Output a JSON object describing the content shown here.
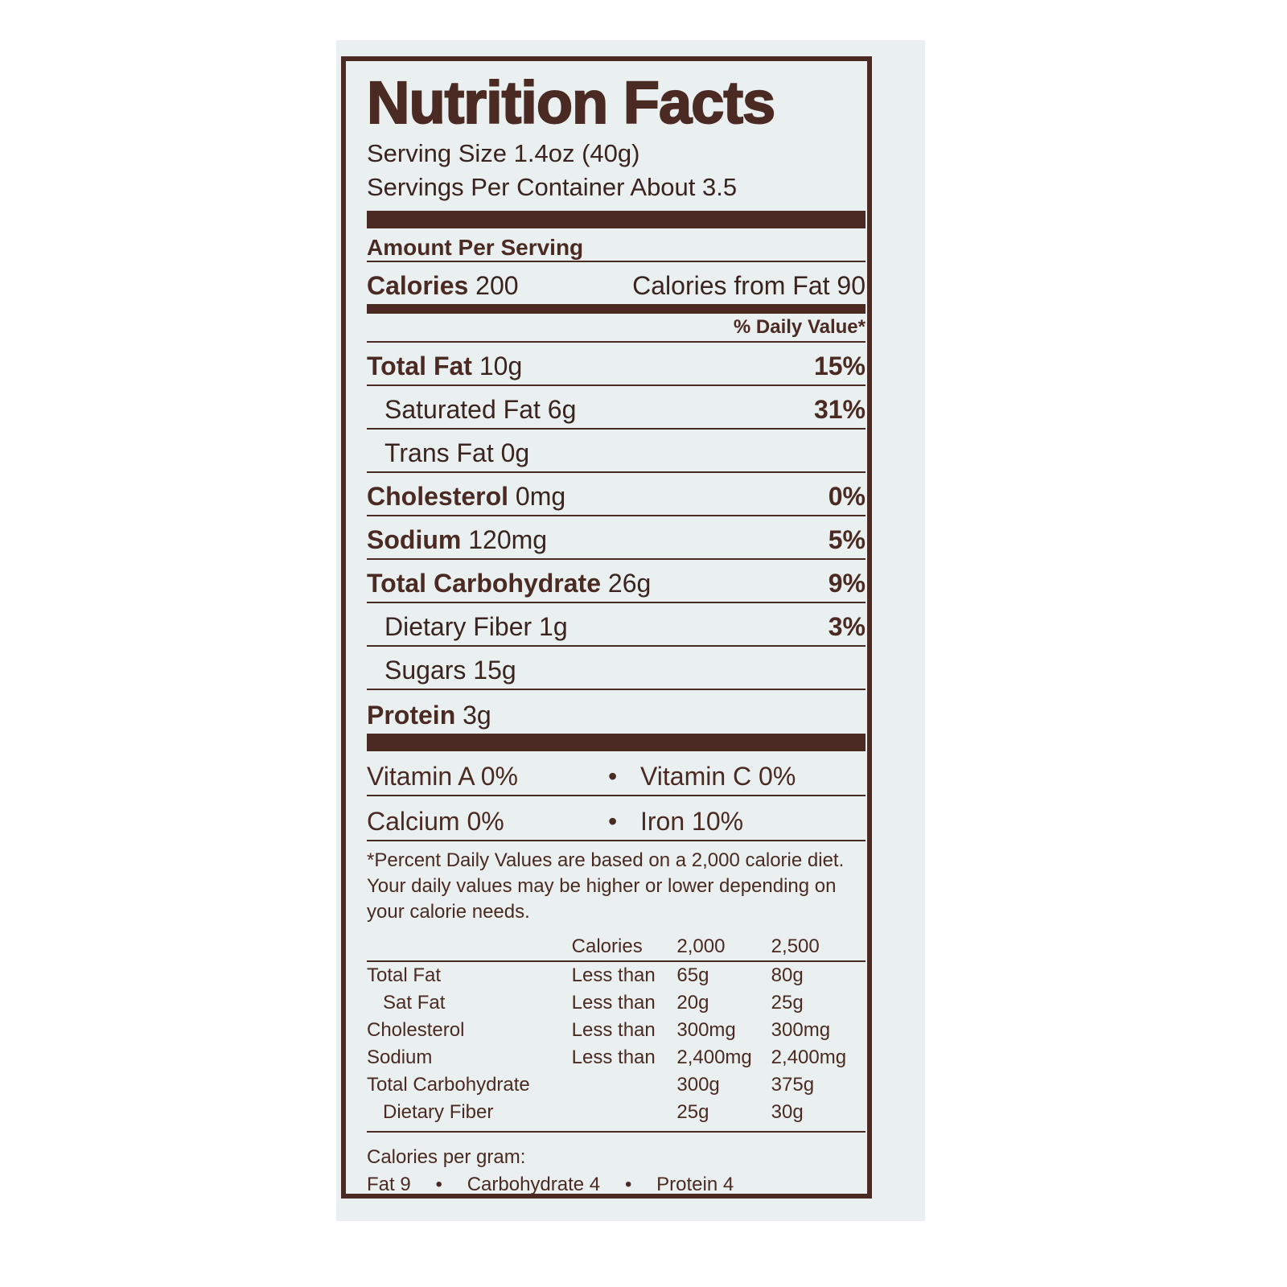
{
  "title": "Nutrition Facts",
  "serving_size": "Serving Size 1.4oz (40g)",
  "servings_per_container": "Servings Per Container About 3.5",
  "amount_per_serving": "Amount Per Serving",
  "calories": {
    "label": "Calories",
    "value": "200",
    "from_fat": "Calories from Fat 90"
  },
  "daily_value_header": "% Daily Value*",
  "nutrients": [
    {
      "name": "Total Fat",
      "amount": "10g",
      "dv": "15%"
    },
    {
      "name": "Saturated Fat",
      "amount": "6g",
      "dv": "31%"
    },
    {
      "name": "Trans Fat",
      "amount": "0g",
      "dv": ""
    },
    {
      "name": "Cholesterol",
      "amount": "0mg",
      "dv": "0%"
    },
    {
      "name": "Sodium",
      "amount": "120mg",
      "dv": "5%"
    },
    {
      "name": "Total Carbohydrate",
      "amount": "26g",
      "dv": "9%"
    },
    {
      "name": "Dietary Fiber",
      "amount": "1g",
      "dv": "3%"
    },
    {
      "name": "Sugars",
      "amount": "15g",
      "dv": ""
    },
    {
      "name": "Protein",
      "amount": "3g",
      "dv": ""
    }
  ],
  "vitamins": [
    {
      "left": "Vitamin A 0%",
      "right": "Vitamin C 0%"
    },
    {
      "left": "Calcium 0%",
      "right": "Iron 10%"
    }
  ],
  "bullet": "•",
  "footnote": "*Percent Daily Values are based on a 2,000 calorie diet. Your daily values may be higher or lower depending on your calorie needs.",
  "dv_table": {
    "headers": [
      "",
      "Calories",
      "2,000",
      "2,500"
    ],
    "rows": [
      [
        "Total Fat",
        "Less than",
        "65g",
        "80g"
      ],
      [
        "Sat Fat",
        "Less than",
        "20g",
        "25g"
      ],
      [
        "Cholesterol",
        "Less than",
        "300mg",
        "300mg"
      ],
      [
        "Sodium",
        "Less than",
        "2,400mg",
        "2,400mg"
      ],
      [
        "Total Carbohydrate",
        "",
        "300g",
        "375g"
      ],
      [
        "Dietary Fiber",
        "",
        "25g",
        "30g"
      ]
    ]
  },
  "calories_per_gram": {
    "label": "Calories per gram:",
    "fat": "Fat 9",
    "carb": "Carbohydrate 4",
    "protein": "Protein 4"
  },
  "colors": {
    "ink": "#4a2a22",
    "background": "#eaf0ef"
  }
}
